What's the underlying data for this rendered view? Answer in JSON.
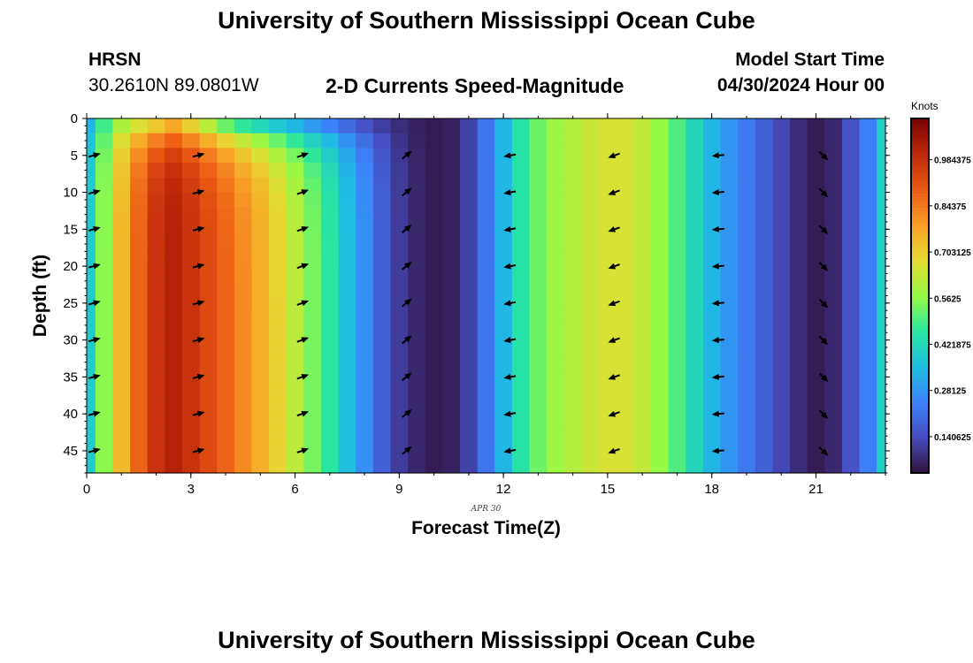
{
  "header": {
    "title": "University of Southern Mississippi Ocean Cube",
    "station": "HRSN",
    "coords": "30.2610N  89.0801W",
    "subtitle": "2-D Currents Speed-Magnitude",
    "model_start_label": "Model Start Time",
    "model_start_value": "04/30/2024 Hour 00",
    "date_annotation": "APR  30",
    "footer_title": "University of Southern Mississippi Ocean Cube"
  },
  "chart_data": {
    "type": "heatmap",
    "xlabel": "Forecast Time(Z)",
    "ylabel": "Depth (ft)",
    "x_ticks": [
      0,
      3,
      6,
      9,
      12,
      15,
      18,
      21
    ],
    "y_ticks": [
      0,
      5,
      10,
      15,
      20,
      25,
      30,
      35,
      40,
      45
    ],
    "xlim": [
      0,
      23
    ],
    "ylim": [
      48,
      0
    ],
    "colorbar": {
      "label": "Knots",
      "ticks": [
        "0.140625",
        "0.28125",
        "0.421875",
        "0.5625",
        "0.703125",
        "0.84375",
        "0.984375"
      ],
      "range": [
        0.03,
        1.11
      ]
    },
    "column_hours": [
      0,
      0.5,
      1,
      1.5,
      2,
      2.5,
      3,
      3.5,
      4,
      4.5,
      5,
      5.5,
      6,
      6.5,
      7,
      7.5,
      8,
      8.5,
      9,
      9.5,
      10,
      10.5,
      11,
      11.5,
      12,
      12.5,
      13,
      13.5,
      14,
      14.5,
      15,
      15.5,
      16,
      16.5,
      17,
      17.5,
      18,
      18.5,
      19,
      19.5,
      20,
      20.5,
      21,
      21.5,
      22,
      22.5,
      23
    ],
    "column_speed_knots": [
      0.39,
      0.56,
      0.74,
      0.88,
      0.98,
      1.02,
      0.98,
      0.93,
      0.88,
      0.82,
      0.76,
      0.69,
      0.62,
      0.54,
      0.46,
      0.36,
      0.27,
      0.18,
      0.11,
      0.07,
      0.05,
      0.06,
      0.12,
      0.22,
      0.34,
      0.45,
      0.53,
      0.58,
      0.61,
      0.64,
      0.66,
      0.66,
      0.63,
      0.57,
      0.5,
      0.42,
      0.34,
      0.28,
      0.23,
      0.18,
      0.13,
      0.08,
      0.05,
      0.07,
      0.15,
      0.24,
      0.4
    ],
    "surface_speed_knots": [
      0.32,
      0.46,
      0.55,
      0.58,
      0.62,
      0.68,
      0.6,
      0.5,
      0.4,
      0.34,
      0.3,
      0.27,
      0.24,
      0.2,
      0.17,
      0.14,
      0.11,
      0.09,
      0.07,
      0.06,
      0.05,
      0.06
    ],
    "vectors": {
      "hours": [
        0,
        3,
        6,
        9,
        12,
        15,
        18,
        21
      ],
      "depths": [
        5,
        10,
        15,
        20,
        25,
        30,
        35,
        40,
        45
      ],
      "direction_deg": [
        15,
        15,
        20,
        40,
        190,
        200,
        185,
        315
      ]
    }
  }
}
